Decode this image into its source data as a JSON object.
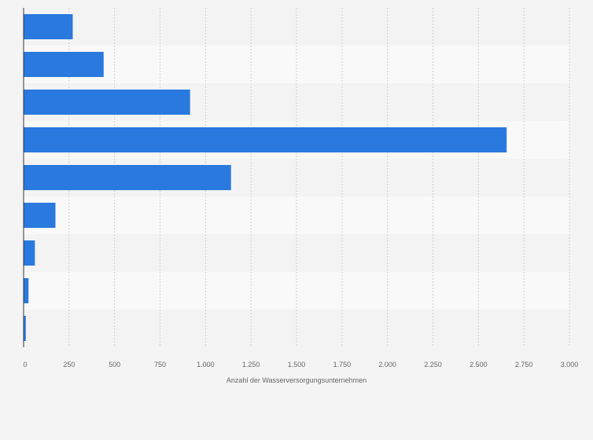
{
  "chart_data": {
    "type": "bar",
    "orientation": "horizontal",
    "title": "",
    "categories": [
      "",
      "",
      "",
      "",
      "",
      "",
      "",
      "",
      ""
    ],
    "values": [
      270,
      440,
      915,
      2655,
      1140,
      175,
      62,
      27,
      12
    ],
    "xlabel": "Anzahl der Wasserversorgungsunternehmen",
    "ylabel": "",
    "xlim": [
      0,
      3000
    ],
    "xticks": [
      0,
      250,
      500,
      750,
      1000,
      1250,
      1500,
      1750,
      2000,
      2250,
      2500,
      2750,
      3000
    ],
    "xtick_labels": [
      "0",
      "250",
      "500",
      "750",
      "1.000",
      "1.250",
      "1.500",
      "1.750",
      "2.000",
      "2.250",
      "2.500",
      "2.750",
      "3.000"
    ],
    "grid": true,
    "legend": "none",
    "colors": {
      "bar": "#2979de",
      "band_dark": "#f3f3f3",
      "band_light": "#f9f9f9",
      "gridline": "#cfcfcf",
      "axis": "#333333",
      "text": "#666666",
      "background": "#f4f4f4"
    }
  }
}
